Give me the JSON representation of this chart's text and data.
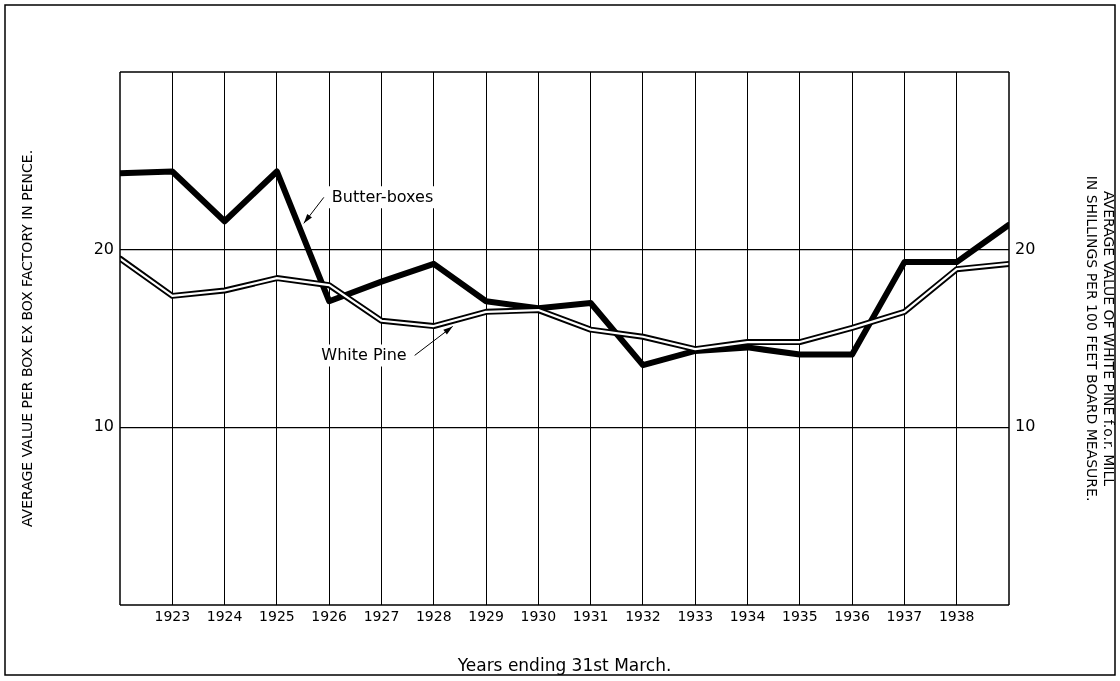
{
  "chart_data": {
    "type": "line",
    "xlabel": "Years ending 31st March.",
    "ylabel": "AVERAGE VALUE PER BOX EX BOX FACTORY IN PENCE.",
    "y2label": "AVERAGE VALUE OF WHITE PINE f.o.r. MILL IN SHILLINGS PER 100 FEET BOARD MEASURE.",
    "x": [
      1922,
      1923,
      1924,
      1925,
      1926,
      1927,
      1928,
      1929,
      1930,
      1931,
      1932,
      1933,
      1934,
      1935,
      1936,
      1937,
      1938,
      1939
    ],
    "series": [
      {
        "name": "Butter-boxes",
        "color": "#000000",
        "values": [
          24.3,
          24.4,
          21.6,
          24.4,
          17.1,
          18.2,
          19.2,
          17.1,
          16.7,
          17.0,
          13.5,
          14.3,
          14.5,
          14.1,
          14.1,
          19.3,
          19.3,
          21.4
        ]
      },
      {
        "name": "White Pine",
        "color": "#000000",
        "axis": "y2",
        "values": [
          19.5,
          17.4,
          17.7,
          18.4,
          18.0,
          16.0,
          15.7,
          16.5,
          16.6,
          15.5,
          15.1,
          14.4,
          14.8,
          14.8,
          15.6,
          16.5,
          18.9,
          19.2
        ]
      }
    ],
    "xlim": [
      1922,
      1939
    ],
    "xticks": [
      1923,
      1924,
      1925,
      1926,
      1927,
      1928,
      1929,
      1930,
      1931,
      1932,
      1933,
      1934,
      1935,
      1936,
      1937,
      1938
    ],
    "ylim": [
      0,
      30
    ],
    "yticks": [
      10,
      20
    ],
    "y2lim": [
      0,
      30
    ],
    "y2ticks": [
      10,
      20
    ],
    "grid": true,
    "legend": false,
    "marker": "none",
    "line_style": "solid"
  }
}
